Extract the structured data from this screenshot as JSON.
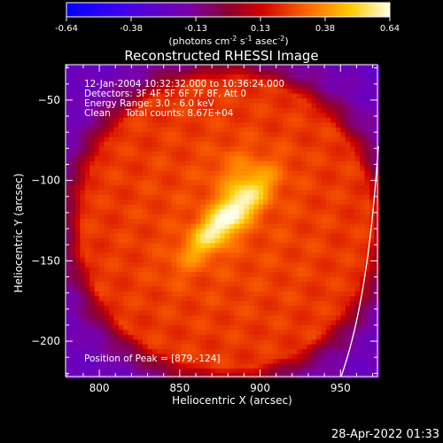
{
  "chart_data": {
    "type": "heatmap",
    "title": "Reconstructed RHESSI Image",
    "annotations": [
      "12-Jan-2004 10:32:32.000 to 10:36:24.000",
      "Detectors: 3F 4F 5F 6F 7F 8F, Att 0",
      "Energy Range: 3.0 - 6.0 keV",
      "Clean     Total counts: 8.67E+04"
    ],
    "peak_label": "Position of Peak = [879,-124]",
    "peak": {
      "x": 879,
      "y": -124
    },
    "xlabel": "Heliocentric X (arcsec)",
    "ylabel": "Heliocentric Y (arcsec)",
    "xlim": [
      779,
      973
    ],
    "ylim": [
      -222,
      -28
    ],
    "x_ticks": [
      800,
      850,
      900,
      950
    ],
    "y_ticks": [
      -50,
      -100,
      -150,
      -200
    ],
    "colorbar": {
      "range": [
        -0.64,
        0.64
      ],
      "ticks": [
        "-0.64",
        "-0.38",
        "-0.13",
        "0.13",
        "0.38",
        "0.64"
      ],
      "unit_label": "(photons cm",
      "unit_exp1": "-2",
      "unit_mid": " s",
      "unit_exp2": "-1",
      "unit_mid2": " asec",
      "unit_exp3": "-2",
      "unit_end": ")"
    },
    "source": {
      "center": [
        879,
        -124
      ],
      "elongation": "NE-SW",
      "peak_value": 0.64
    },
    "disk_background_value": 0.22,
    "outside_value": -0.25
  },
  "timestamp": "28-Apr-2022 01:33",
  "colors": {
    "background": "#000000",
    "foreground": "#ffffff",
    "limb": "#ffffff"
  }
}
